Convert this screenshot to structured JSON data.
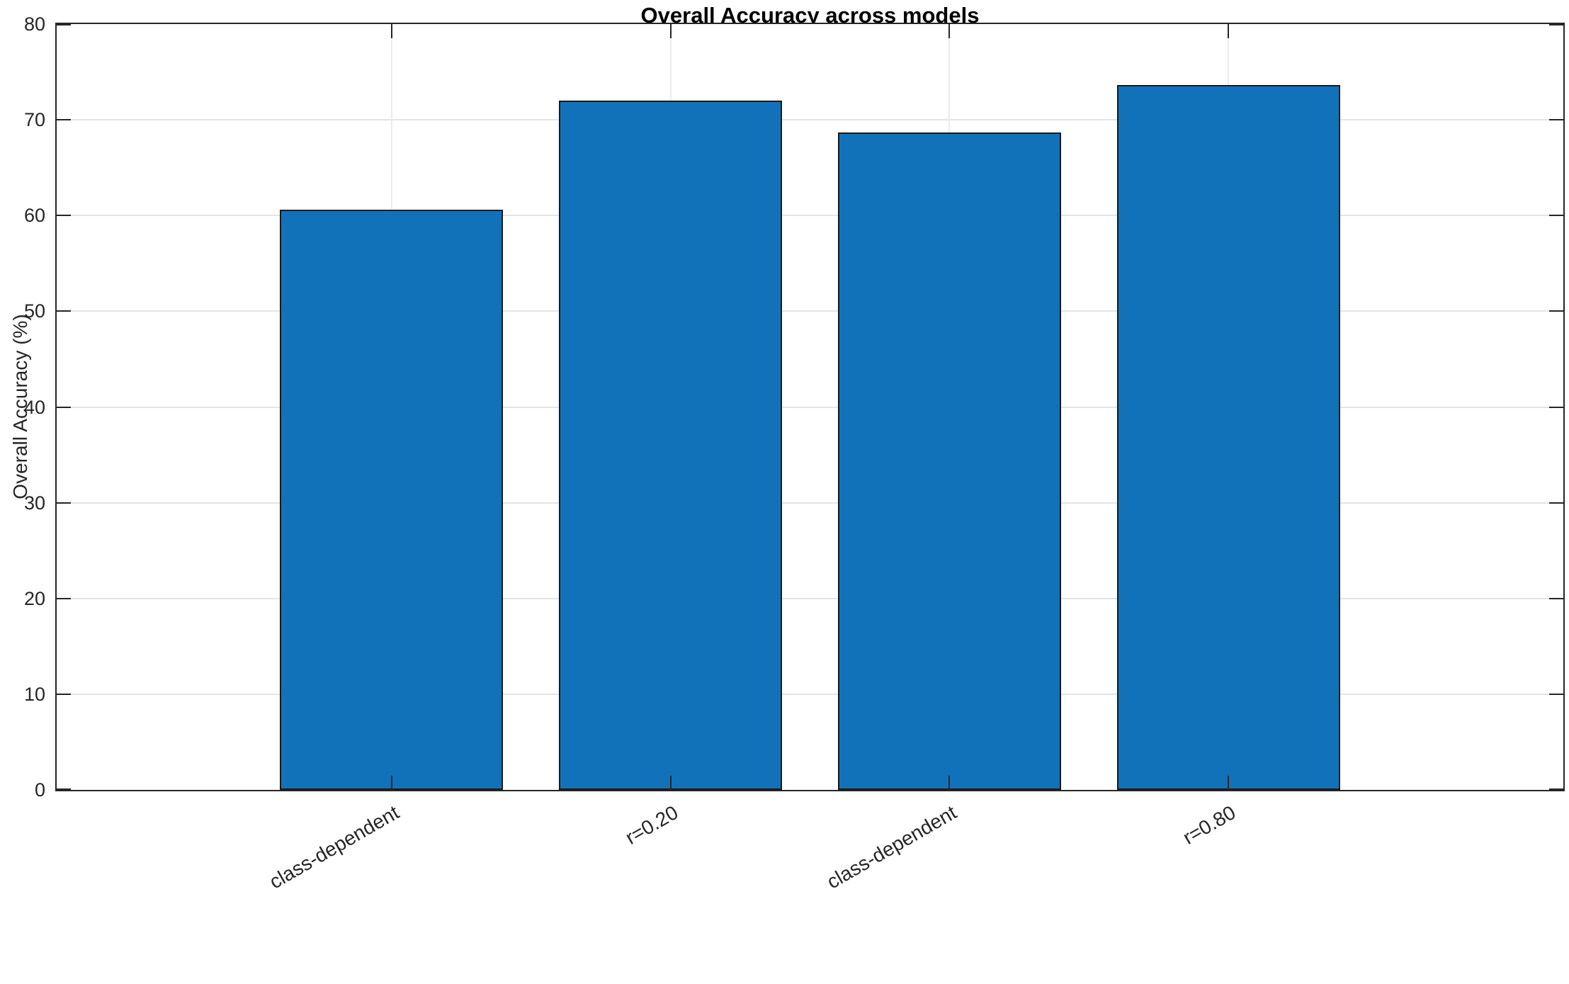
{
  "figure": {
    "background": "#ffffff"
  },
  "chart_data": {
    "type": "bar",
    "title": "Overall Accuracy across models",
    "categories": [
      "class-dependent",
      "r=0.20",
      "class-dependent",
      "r=0.80"
    ],
    "values": [
      60.6,
      72.0,
      68.7,
      73.6
    ],
    "xlabel": "",
    "ylabel": "Overall Accuracy (%)",
    "ylim": [
      0,
      80
    ],
    "yticks": [
      0,
      10,
      20,
      30,
      40,
      50,
      60,
      70,
      80
    ],
    "ytick_labels": [
      "0",
      "10",
      "20",
      "30",
      "40",
      "50",
      "60",
      "70",
      "80"
    ],
    "xlim": [
      -0.2,
      5.2
    ],
    "bar_width": 0.8,
    "bar_color": "#1272b9",
    "bar_edge_color": "#1a1a1a",
    "axis_color": "#262626",
    "grid_color": "#e4e4e4",
    "grid": true,
    "box": true,
    "tick_direction": "in",
    "xtick_angle": -30,
    "legend": null
  }
}
